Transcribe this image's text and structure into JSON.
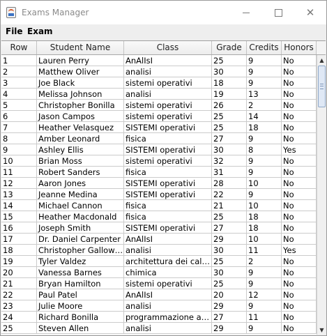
{
  "window": {
    "title": "Exams Manager"
  },
  "icons": {
    "app": "app-icon",
    "minimize": "minimize-icon",
    "maximize": "maximize-icon",
    "close": "close-icon"
  },
  "menubar": {
    "file": "File",
    "exam": "Exam"
  },
  "table": {
    "headers": [
      "Row",
      "Student Name",
      "Class",
      "Grade",
      "Credits",
      "Honors"
    ],
    "rows": [
      [
        "1",
        "Lauren Perry",
        "AnAlIsI",
        "25",
        "9",
        "No"
      ],
      [
        "2",
        "Matthew Oliver",
        "analisi",
        "30",
        "9",
        "No"
      ],
      [
        "3",
        "Joe Black",
        "sistemi operativi",
        "18",
        "9",
        "No"
      ],
      [
        "4",
        "Melissa Johnson",
        "analisi",
        "19",
        "13",
        "No"
      ],
      [
        "5",
        "Christopher Bonilla",
        "sistemi operativi",
        "26",
        "2",
        "No"
      ],
      [
        "6",
        "Jason Campos",
        "sistemi operativi",
        "25",
        "14",
        "No"
      ],
      [
        "7",
        "Heather Velasquez",
        "SISTEMI operativi",
        "25",
        "18",
        "No"
      ],
      [
        "8",
        "Amber Leonard",
        "fisica",
        "27",
        "9",
        "No"
      ],
      [
        "9",
        "Ashley Ellis",
        "SISTEMI operativi",
        "30",
        "8",
        "Yes"
      ],
      [
        "10",
        "Brian Moss",
        "sistemi operativi",
        "32",
        "9",
        "No"
      ],
      [
        "11",
        "Robert Sanders",
        "fisica",
        "31",
        "9",
        "No"
      ],
      [
        "12",
        "Aaron Jones",
        "SISTEMI operativi",
        "28",
        "10",
        "No"
      ],
      [
        "13",
        "Jeanne Medina",
        "SISTEMI operativi",
        "22",
        "9",
        "No"
      ],
      [
        "14",
        "Michael Cannon",
        "fisica",
        "21",
        "10",
        "No"
      ],
      [
        "15",
        "Heather Macdonald",
        "fisica",
        "25",
        "18",
        "No"
      ],
      [
        "16",
        "Joseph Smith",
        "SISTEMI operativi",
        "27",
        "18",
        "No"
      ],
      [
        "17",
        "Dr. Daniel Carpenter",
        "AnAlIsI",
        "29",
        "10",
        "No"
      ],
      [
        "18",
        "Christopher Galloway",
        "analisi",
        "30",
        "11",
        "Yes"
      ],
      [
        "19",
        "Tyler Valdez",
        "architettura dei calcolatori",
        "25",
        "2",
        "No"
      ],
      [
        "20",
        "Vanessa Barnes",
        "chimica",
        "30",
        "9",
        "No"
      ],
      [
        "21",
        "Bryan Hamilton",
        "sistemi operativi",
        "25",
        "9",
        "No"
      ],
      [
        "22",
        "Paul Patel",
        "AnAlIsI",
        "20",
        "12",
        "No"
      ],
      [
        "23",
        "Julie Moore",
        "analisi",
        "29",
        "9",
        "No"
      ],
      [
        "24",
        "Richard Bonilla",
        "programmazione ad oggetti",
        "27",
        "11",
        "No"
      ],
      [
        "25",
        "Steven Allen",
        "analisi",
        "29",
        "9",
        "No"
      ]
    ]
  },
  "scrollbar": {
    "up_glyph": "▲",
    "down_glyph": "▼"
  }
}
